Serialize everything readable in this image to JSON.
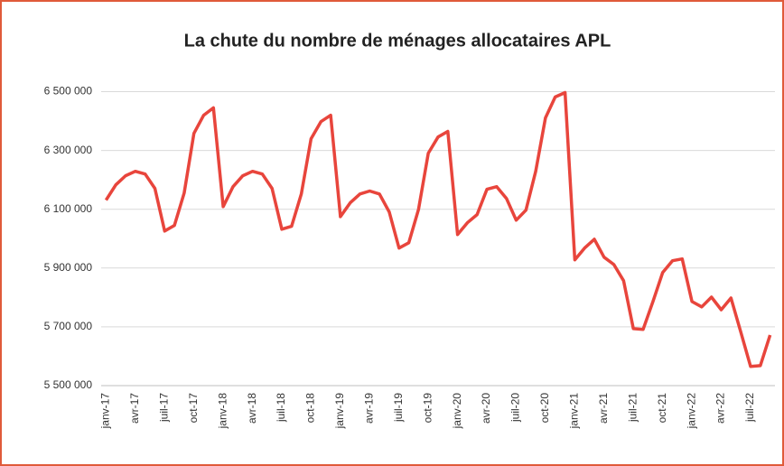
{
  "chart_data": {
    "type": "line",
    "title": "La chute du nombre de ménages allocataires APL",
    "categories": [
      "janv-17",
      null,
      null,
      "avr-17",
      null,
      null,
      "juil-17",
      null,
      null,
      "oct-17",
      null,
      null,
      "janv-18",
      null,
      null,
      "avr-18",
      null,
      null,
      "juil-18",
      null,
      null,
      "oct-18",
      null,
      null,
      "janv-19",
      null,
      null,
      "avr-19",
      null,
      null,
      "juil-19",
      null,
      null,
      "oct-19",
      null,
      null,
      "janv-20",
      null,
      null,
      "avr-20",
      null,
      null,
      "juil-20",
      null,
      null,
      "oct-20",
      null,
      null,
      "janv-21",
      null,
      null,
      "avr-21",
      null,
      null,
      "juil-21",
      null,
      null,
      "oct-21",
      null,
      null,
      "janv-22",
      null,
      null,
      "avr-22",
      null,
      null,
      "juil-22",
      null,
      null
    ],
    "series": [
      {
        "color": "#e8453c",
        "values": [
          6131000,
          6183000,
          6214000,
          6229000,
          6220000,
          6171000,
          6026000,
          6045000,
          6155000,
          6358000,
          6420000,
          6445000,
          6109000,
          6177000,
          6214000,
          6229000,
          6220000,
          6171000,
          6032000,
          6042000,
          6152000,
          6340000,
          6398000,
          6420000,
          6075000,
          6122000,
          6152000,
          6162000,
          6152000,
          6091000,
          5968000,
          5986000,
          6100000,
          6291000,
          6346000,
          6365000,
          6014000,
          6054000,
          6082000,
          6168000,
          6177000,
          6137000,
          6063000,
          6097000,
          6229000,
          6411000,
          6482000,
          6497000,
          5928000,
          5968000,
          5998000,
          5937000,
          5912000,
          5857000,
          5694000,
          5691000,
          5786000,
          5885000,
          5925000,
          5931000,
          5786000,
          5768000,
          5801000,
          5758000,
          5798000,
          5682000,
          5565000,
          5568000,
          5672000
        ]
      }
    ],
    "ylim": [
      5500000,
      6560000
    ],
    "yticks": [
      {
        "value": 5500000,
        "label": "5 500 000"
      },
      {
        "value": 5700000,
        "label": "5 700 000"
      },
      {
        "value": 5900000,
        "label": "5 900 000"
      },
      {
        "value": 6100000,
        "label": "6 100 000"
      },
      {
        "value": 6300000,
        "label": "6 300 000"
      },
      {
        "value": 6500000,
        "label": "6 500 000"
      }
    ],
    "grid": true
  }
}
